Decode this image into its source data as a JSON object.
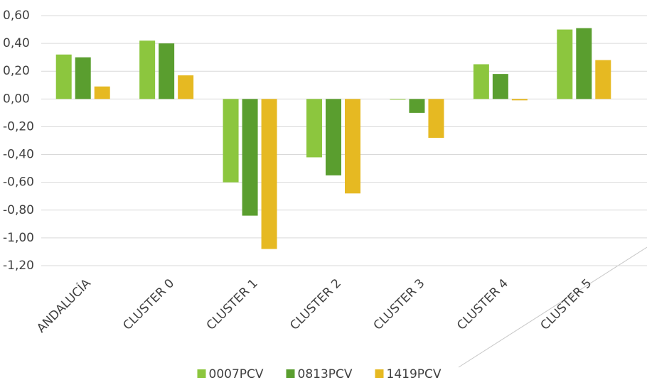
{
  "chart_data": {
    "type": "bar",
    "categories": [
      "ANDALUCÍA",
      "CLUSTER 0",
      "CLUSTER 1",
      "CLUSTER 2",
      "CLUSTER 3",
      "CLUSTER 4",
      "CLUSTER 5"
    ],
    "series": [
      {
        "name": "0007PCV",
        "color": "#8cc63e",
        "values": [
          0.32,
          0.42,
          -0.6,
          -0.42,
          0.0,
          0.25,
          0.5
        ]
      },
      {
        "name": "0813PCV",
        "color": "#5a9e2f",
        "values": [
          0.3,
          0.4,
          -0.84,
          -0.55,
          -0.1,
          0.18,
          0.51
        ]
      },
      {
        "name": "1419PCV",
        "color": "#e6b922",
        "values": [
          0.09,
          0.17,
          -1.08,
          -0.68,
          -0.28,
          -0.01,
          0.28
        ]
      }
    ],
    "ylim": [
      -1.2,
      0.6
    ],
    "yticks": [
      {
        "value": -1.2,
        "label": "-1,20"
      },
      {
        "value": -1.0,
        "label": "-1,00"
      },
      {
        "value": -0.8,
        "label": "-0,80"
      },
      {
        "value": -0.6,
        "label": "-0,60"
      },
      {
        "value": -0.4,
        "label": "-0,40"
      },
      {
        "value": -0.2,
        "label": "-0,20"
      },
      {
        "value": 0.0,
        "label": "0,00"
      },
      {
        "value": 0.2,
        "label": "0,20"
      },
      {
        "value": 0.4,
        "label": "0,40"
      },
      {
        "value": 0.6,
        "label": "0,60"
      }
    ],
    "grid": true,
    "legend": "bottom"
  }
}
